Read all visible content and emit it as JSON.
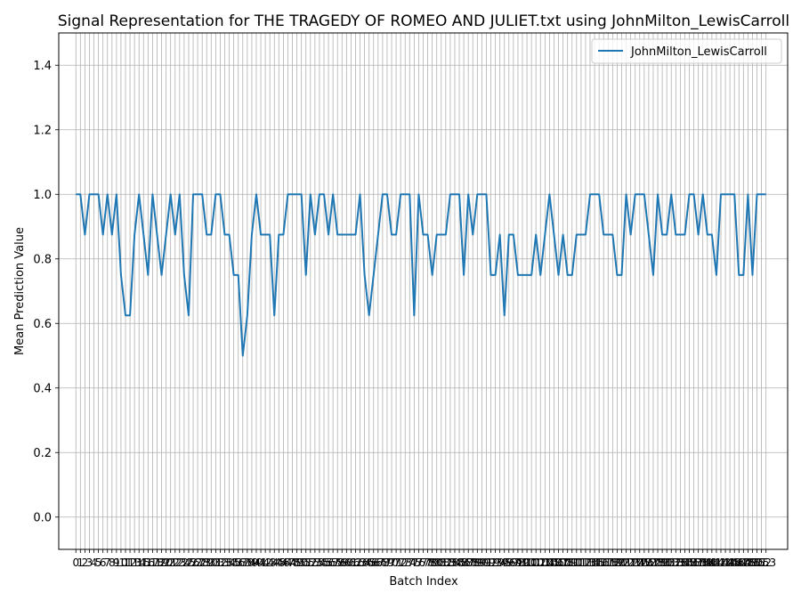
{
  "chart_data": {
    "type": "line",
    "title": "Signal Representation for THE TRAGEDY OF ROMEO AND JULIET.txt using JohnMilton_LewisCarroll",
    "xlabel": "Batch Index",
    "ylabel": "Mean Prediction Value",
    "xlim": [
      -3.8,
      157.8
    ],
    "ylim": [
      -0.1,
      1.5
    ],
    "yticks": [
      0.0,
      0.2,
      0.4,
      0.6,
      0.8,
      1.0,
      1.2,
      1.4
    ],
    "ytick_labels": [
      "0.0",
      "0.2",
      "0.4",
      "0.6",
      "0.8",
      "1.0",
      "1.2",
      "1.4"
    ],
    "x_grid_count": 154,
    "legend_position": "upper right",
    "color": "#1f77b4",
    "series": [
      {
        "name": "JohnMilton_LewisCarroll",
        "x": [
          0,
          1,
          2,
          3,
          4,
          5,
          6,
          7,
          8,
          9,
          10,
          11,
          12,
          13,
          14,
          15,
          16,
          17,
          18,
          19,
          20,
          21,
          22,
          23,
          24,
          25,
          26,
          27,
          28,
          29,
          30,
          31,
          32,
          33,
          34,
          35,
          36,
          37,
          38,
          39,
          40,
          41,
          42,
          43,
          44,
          45,
          46,
          47,
          48,
          49,
          50,
          51,
          52,
          53,
          54,
          55,
          56,
          57,
          58,
          59,
          60,
          61,
          62,
          63,
          64,
          65,
          66,
          67,
          68,
          69,
          70,
          71,
          72,
          73,
          74,
          75,
          76,
          77,
          78,
          79,
          80,
          81,
          82,
          83,
          84,
          85,
          86,
          87,
          88,
          89,
          90,
          91,
          92,
          93,
          94,
          95,
          96,
          97,
          98,
          99,
          100,
          101,
          102,
          103,
          104,
          105,
          106,
          107,
          108,
          109,
          110,
          111,
          112,
          113,
          114,
          115,
          116,
          117,
          118,
          119,
          120,
          121,
          122,
          123,
          124,
          125,
          126,
          127,
          128,
          129,
          130,
          131,
          132,
          133,
          134,
          135,
          136,
          137,
          138,
          139,
          140,
          141,
          142,
          143,
          144,
          145,
          146,
          147,
          148,
          149,
          150,
          151,
          152,
          153
        ],
        "values": [
          1.0,
          1.0,
          0.875,
          1.0,
          1.0,
          1.0,
          0.875,
          1.0,
          0.875,
          1.0,
          0.75,
          0.625,
          0.625,
          0.875,
          1.0,
          0.875,
          0.75,
          1.0,
          0.875,
          0.75,
          0.875,
          1.0,
          0.875,
          1.0,
          0.75,
          0.625,
          1.0,
          1.0,
          1.0,
          0.875,
          0.875,
          1.0,
          1.0,
          0.875,
          0.875,
          0.75,
          0.75,
          0.5,
          0.625,
          0.875,
          1.0,
          0.875,
          0.875,
          0.875,
          0.625,
          0.875,
          0.875,
          1.0,
          1.0,
          1.0,
          1.0,
          0.75,
          1.0,
          0.875,
          1.0,
          1.0,
          0.875,
          1.0,
          0.875,
          0.875,
          0.875,
          0.875,
          0.875,
          1.0,
          0.75,
          0.625,
          0.75,
          0.875,
          1.0,
          1.0,
          0.875,
          0.875,
          1.0,
          1.0,
          1.0,
          0.625,
          1.0,
          0.875,
          0.875,
          0.75,
          0.875,
          0.875,
          0.875,
          1.0,
          1.0,
          1.0,
          0.75,
          1.0,
          0.875,
          1.0,
          1.0,
          1.0,
          0.75,
          0.75,
          0.875,
          0.625,
          0.875,
          0.875,
          0.75,
          0.75,
          0.75,
          0.75,
          0.875,
          0.75,
          0.875,
          1.0,
          0.875,
          0.75,
          0.875,
          0.75,
          0.75,
          0.875,
          0.875,
          0.875,
          1.0,
          1.0,
          1.0,
          0.875,
          0.875,
          0.875,
          0.75,
          0.75,
          1.0,
          0.875,
          1.0,
          1.0,
          1.0,
          0.875,
          0.75,
          1.0,
          0.875,
          0.875,
          1.0,
          0.875,
          0.875,
          0.875,
          1.0,
          1.0,
          0.875,
          1.0,
          0.875,
          0.875,
          0.75,
          1.0,
          1.0,
          1.0,
          1.0,
          0.75,
          0.75,
          1.0,
          0.75,
          1.0,
          1.0,
          1.0
        ]
      }
    ]
  }
}
